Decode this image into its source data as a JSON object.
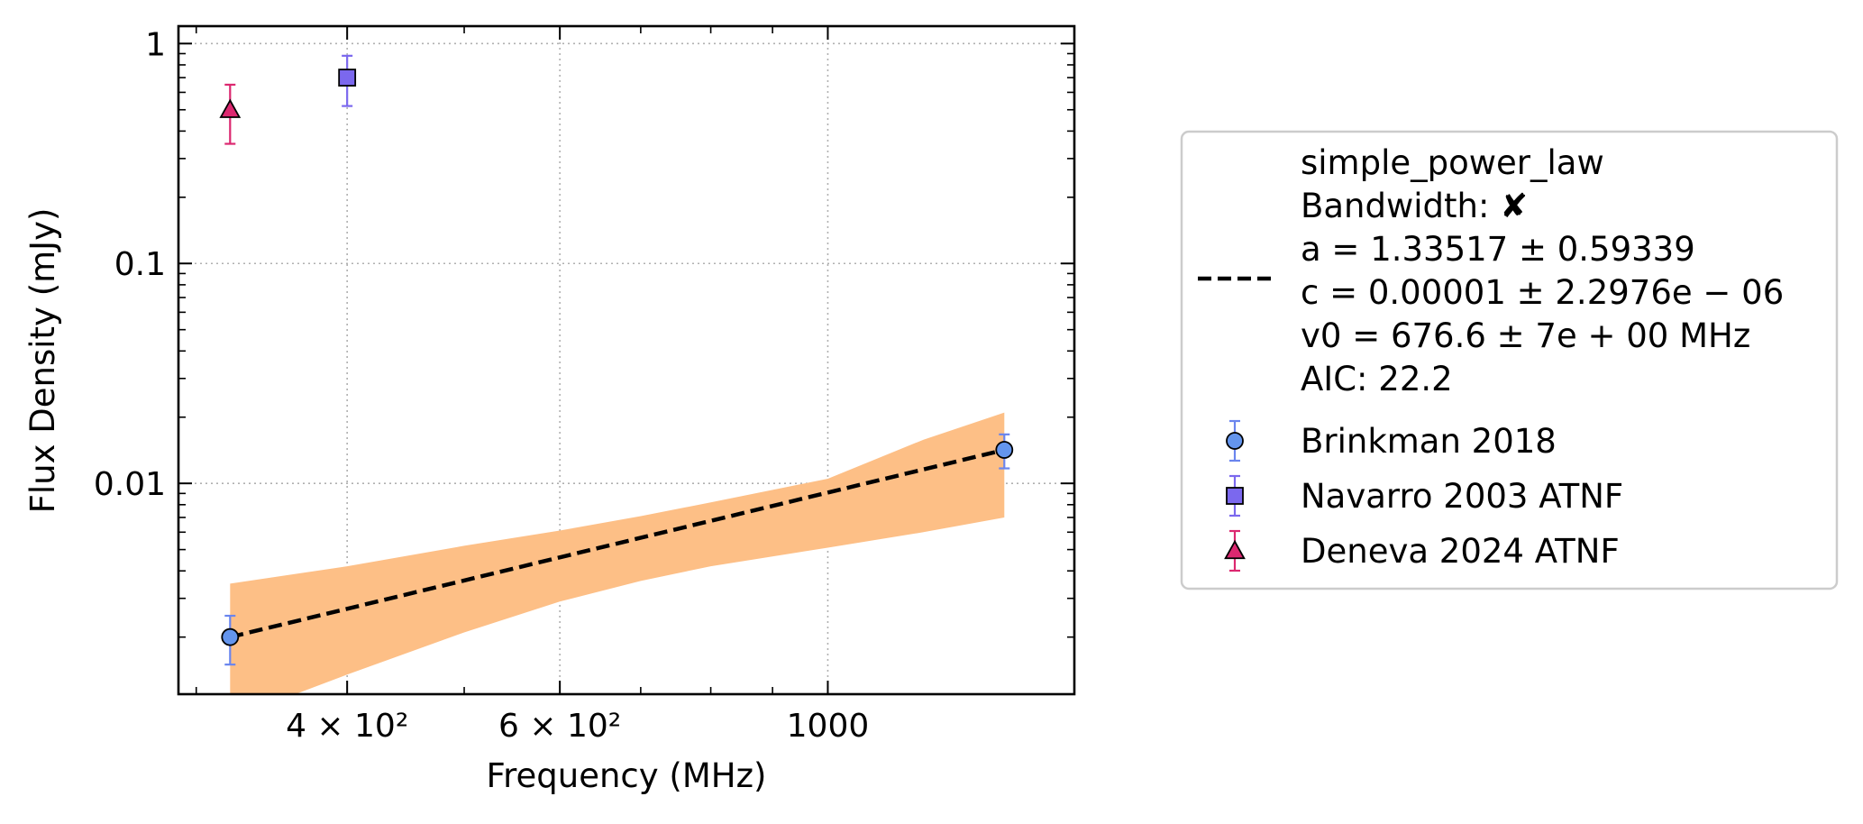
{
  "chart_data": {
    "type": "scatter",
    "xlabel": "Frequency (MHz)",
    "ylabel": "Flux Density (mJy)",
    "x_scale": "log",
    "y_scale": "log",
    "xlim": [
      290,
      1600
    ],
    "ylim": [
      0.0011,
      1.2
    ],
    "x_ticks": [
      {
        "value": 400,
        "label": "4 × 10²"
      },
      {
        "value": 600,
        "label": "6 × 10²"
      },
      {
        "value": 1000,
        "label": "1000"
      }
    ],
    "y_ticks": [
      {
        "value": 0.01,
        "label": "0.01"
      },
      {
        "value": 0.1,
        "label": "0.1"
      },
      {
        "value": 1,
        "label": "1"
      }
    ],
    "grid": true,
    "series": [
      {
        "name": "Brinkman 2018",
        "marker": "circle",
        "color": "#6495ED",
        "error_color": "#6A85EE",
        "points": [
          {
            "x": 320,
            "y": 0.002,
            "yerr_low": 0.0005,
            "yerr_high": 0.0005
          },
          {
            "x": 1400,
            "y": 0.0142,
            "yerr_low": 0.0025,
            "yerr_high": 0.0025
          }
        ]
      },
      {
        "name": "Navarro 2003 ATNF",
        "marker": "square",
        "color": "#7B68EE",
        "error_color": "#7B68EE",
        "points": [
          {
            "x": 400,
            "y": 0.7,
            "yerr_low": 0.18,
            "yerr_high": 0.18
          }
        ]
      },
      {
        "name": "Deneva 2024 ATNF",
        "marker": "triangle",
        "color": "#DC2870",
        "error_color": "#DC2870",
        "points": [
          {
            "x": 320,
            "y": 0.5,
            "yerr_low": 0.15,
            "yerr_high": 0.15
          }
        ]
      }
    ],
    "fit": {
      "name": "simple_power_law",
      "legend_lines": [
        "simple_power_law",
        "Bandwidth: ✘",
        "a = 1.33517 ± 0.59339",
        "c = 0.00001 ± 2.2976e − 06",
        "v0 = 676.6 ± 7e + 00 MHz",
        "AIC: 22.2"
      ],
      "line_color": "#000000",
      "line_style": "dashed",
      "x": [
        320,
        1400
      ],
      "y": [
        0.002,
        0.0142
      ],
      "band_color": "#FDBF86",
      "band": [
        {
          "x": 320,
          "low": 0.00085,
          "high": 0.0035
        },
        {
          "x": 400,
          "low": 0.00135,
          "high": 0.0042
        },
        {
          "x": 500,
          "low": 0.0021,
          "high": 0.0052
        },
        {
          "x": 600,
          "low": 0.0029,
          "high": 0.0061
        },
        {
          "x": 700,
          "low": 0.0036,
          "high": 0.0071
        },
        {
          "x": 800,
          "low": 0.0042,
          "high": 0.0082
        },
        {
          "x": 1000,
          "low": 0.0051,
          "high": 0.0105
        },
        {
          "x": 1200,
          "low": 0.006,
          "high": 0.0158
        },
        {
          "x": 1400,
          "low": 0.007,
          "high": 0.021
        }
      ]
    },
    "legend_position": "outside-right"
  }
}
